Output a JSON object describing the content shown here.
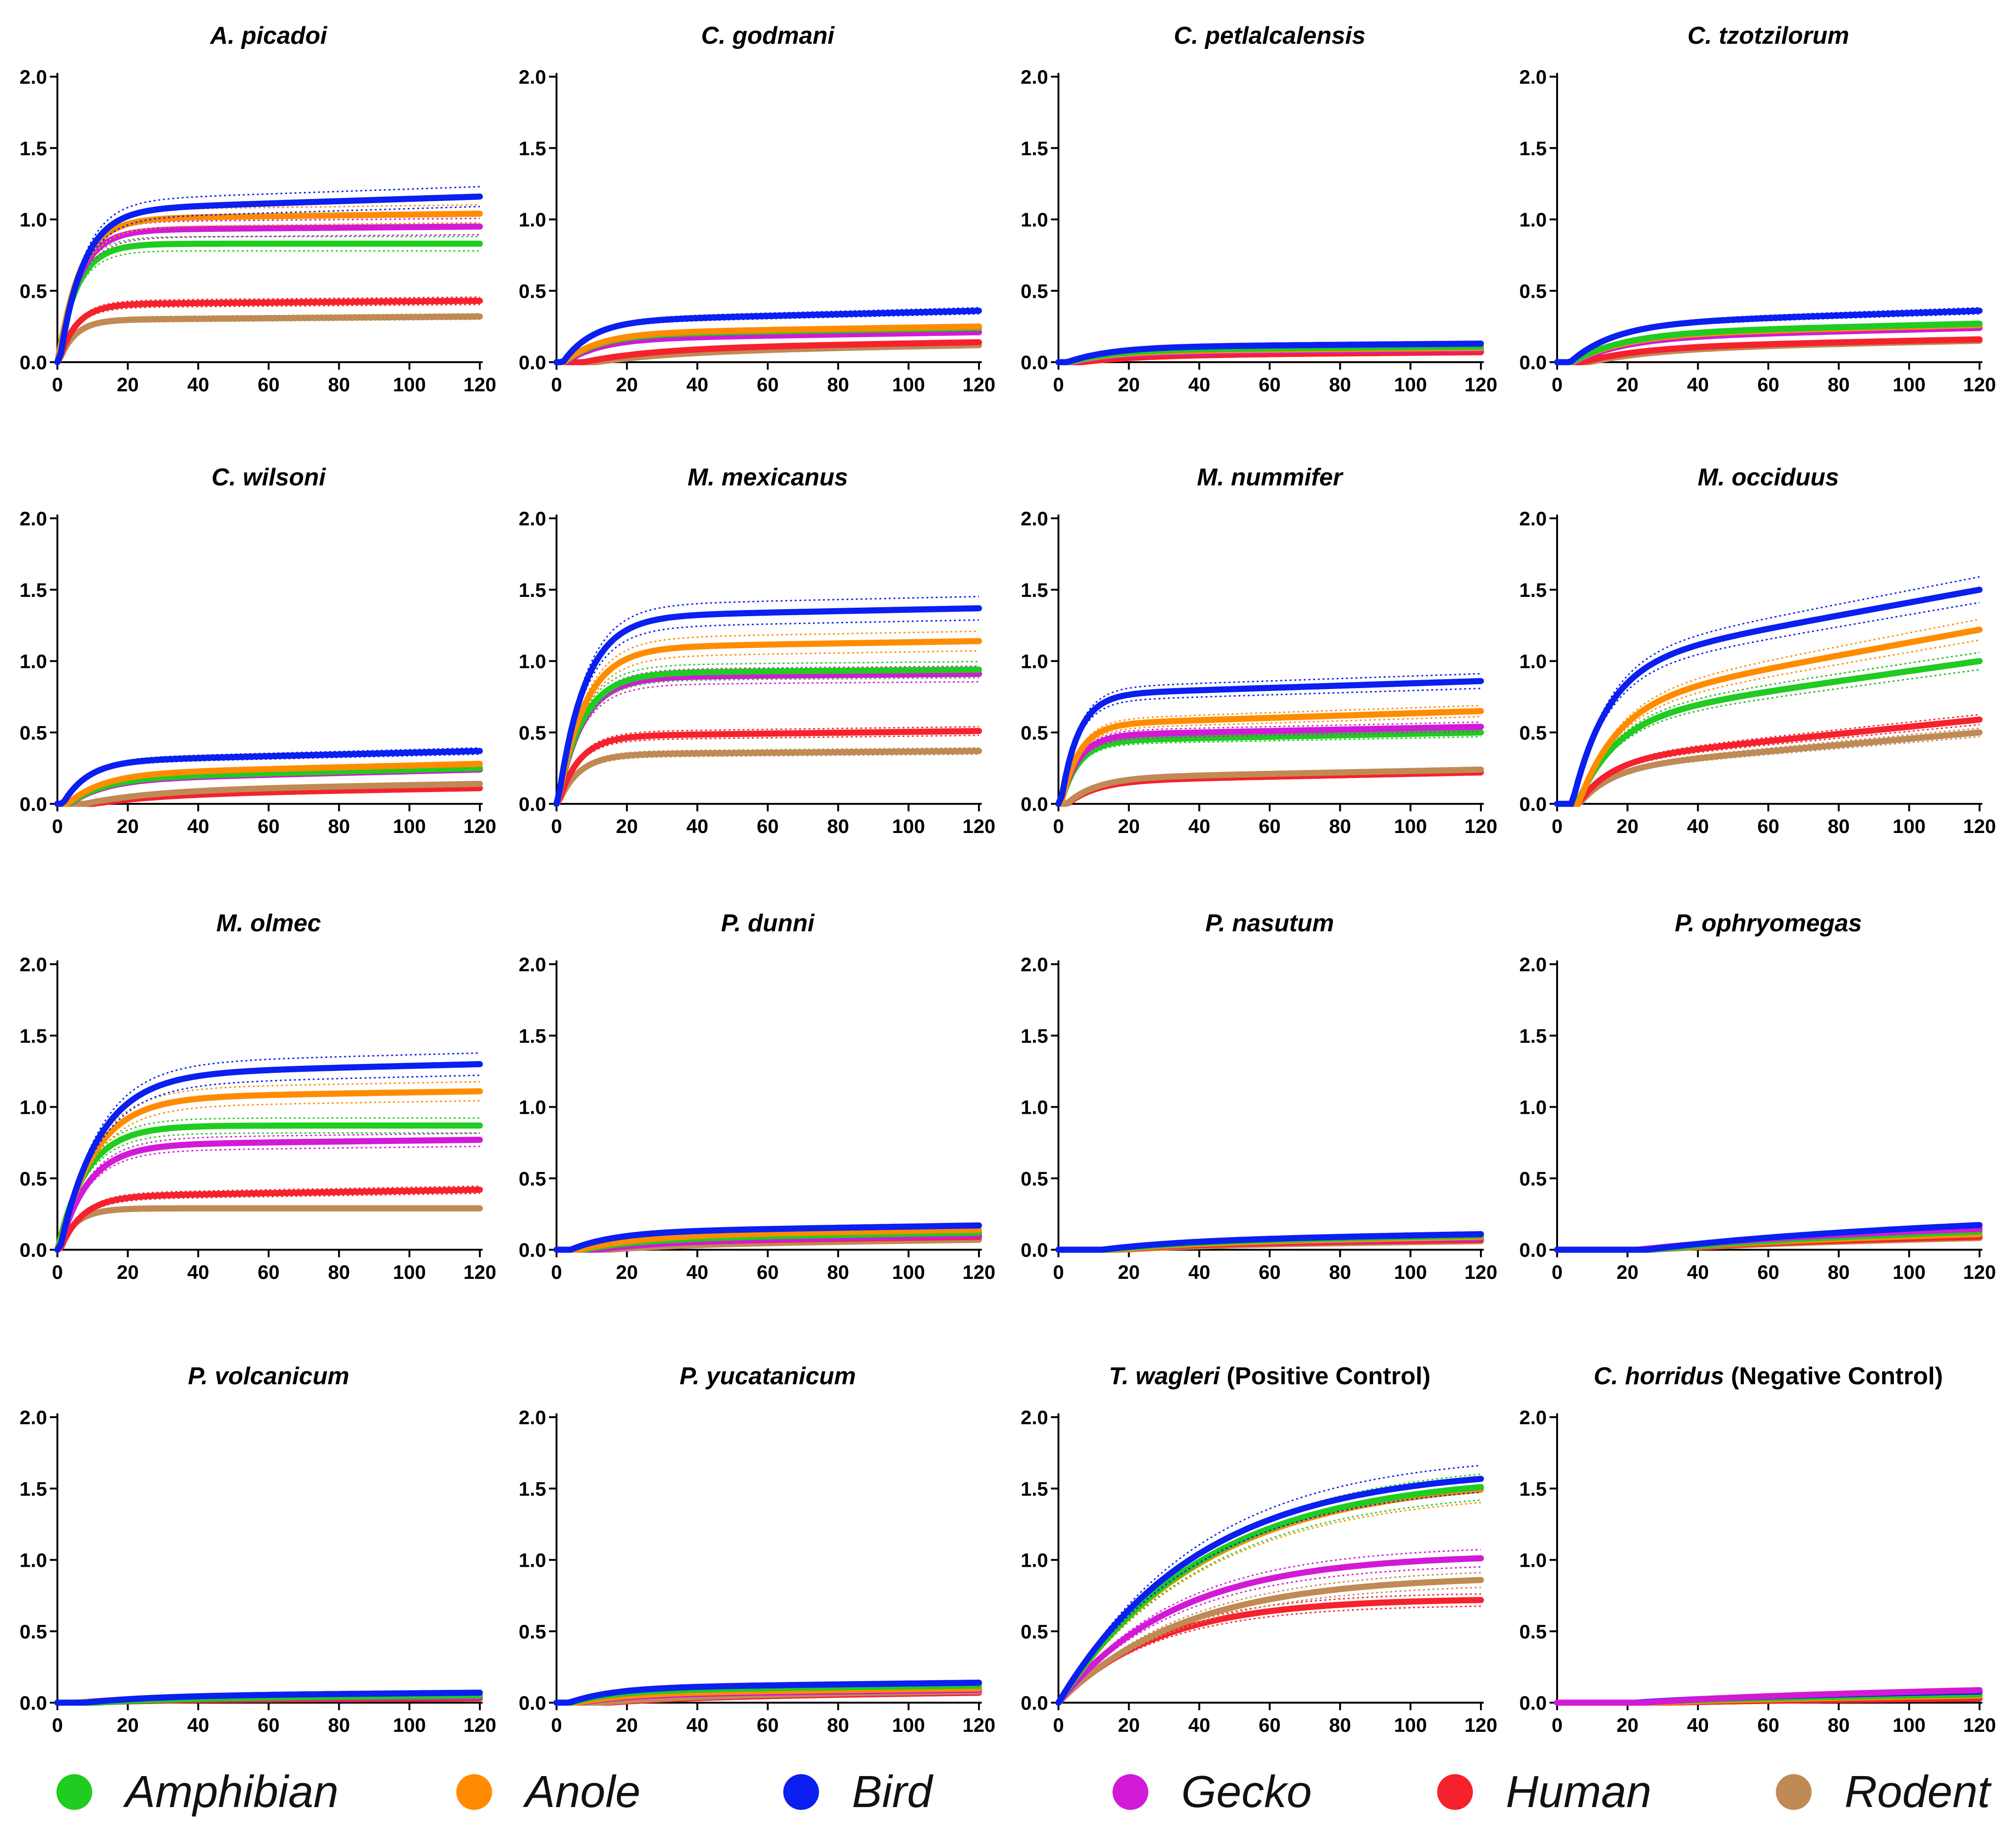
{
  "colors": {
    "Amphibian": "#1fcc1f",
    "Anole": "#ff8c00",
    "Bird": "#0a1ff0",
    "Gecko": "#d21ad6",
    "Human": "#f5222d",
    "Rodent": "#c08a55"
  },
  "legend": [
    {
      "label": "Amphibian",
      "color": "#1fcc1f"
    },
    {
      "label": "Anole",
      "color": "#ff8c00"
    },
    {
      "label": "Bird",
      "color": "#0a1ff0"
    },
    {
      "label": "Gecko",
      "color": "#d21ad6"
    },
    {
      "label": "Human",
      "color": "#f5222d"
    },
    {
      "label": "Rodent",
      "color": "#c08a55"
    }
  ],
  "chart_data": [
    {
      "type": "line",
      "title": "A. picadoi",
      "title_suffix": "",
      "xlim": [
        0,
        120
      ],
      "ylim": [
        0,
        2.0
      ],
      "xticks": [
        "0",
        "20",
        "40",
        "60",
        "80",
        "100",
        "120"
      ],
      "yticks": [
        "0.0",
        "0.5",
        "1.0",
        "1.5",
        "2.0"
      ],
      "series": [
        {
          "name": "Bird",
          "plateau": 1.16,
          "rate": 0.15,
          "slope": 0.0008
        },
        {
          "name": "Anole",
          "plateau": 1.04,
          "rate": 0.16,
          "slope": 0.0003
        },
        {
          "name": "Gecko",
          "plateau": 0.95,
          "rate": 0.17,
          "slope": 0.0002
        },
        {
          "name": "Amphibian",
          "plateau": 0.83,
          "rate": 0.18,
          "slope": 0.0
        },
        {
          "name": "Human",
          "plateau": 0.43,
          "rate": 0.2,
          "slope": 0.0002
        },
        {
          "name": "Rodent",
          "plateau": 0.32,
          "rate": 0.22,
          "slope": 0.0002
        }
      ]
    },
    {
      "type": "line",
      "title": "C. godmani",
      "title_suffix": "",
      "xlim": [
        0,
        120
      ],
      "ylim": [
        0,
        2.0
      ],
      "xticks": [
        "0",
        "20",
        "40",
        "60",
        "80",
        "100",
        "120"
      ],
      "yticks": [
        "0.0",
        "0.5",
        "1.0",
        "1.5",
        "2.0"
      ],
      "series": [
        {
          "name": "Bird",
          "plateau": 0.36,
          "rate": 0.12,
          "slope": 0.0006
        },
        {
          "name": "Anole",
          "plateau": 0.25,
          "rate": 0.1,
          "slope": 0.0004
        },
        {
          "name": "Amphibian",
          "plateau": 0.24,
          "rate": 0.1,
          "slope": 0.0004
        },
        {
          "name": "Gecko",
          "plateau": 0.21,
          "rate": 0.1,
          "slope": 0.0004
        },
        {
          "name": "Human",
          "plateau": 0.14,
          "rate": 0.05,
          "slope": 0.0004
        },
        {
          "name": "Rodent",
          "plateau": 0.12,
          "rate": 0.04,
          "slope": 0.0004
        }
      ]
    },
    {
      "type": "line",
      "title": "C. petlalcalensis",
      "title_suffix": "",
      "xlim": [
        0,
        120
      ],
      "ylim": [
        0,
        2.0
      ],
      "xticks": [
        "0",
        "20",
        "40",
        "60",
        "80",
        "100",
        "120"
      ],
      "yticks": [
        "0.0",
        "0.5",
        "1.0",
        "1.5",
        "2.0"
      ],
      "series": [
        {
          "name": "Bird",
          "plateau": 0.13,
          "rate": 0.08,
          "slope": 0.0002
        },
        {
          "name": "Amphibian",
          "plateau": 0.11,
          "rate": 0.08,
          "slope": 0.0002
        },
        {
          "name": "Anole",
          "plateau": 0.1,
          "rate": 0.08,
          "slope": 0.0002
        },
        {
          "name": "Gecko",
          "plateau": 0.09,
          "rate": 0.08,
          "slope": 0.0002
        },
        {
          "name": "Human",
          "plateau": 0.07,
          "rate": 0.06,
          "slope": 0.0002
        },
        {
          "name": "Rodent",
          "plateau": 0.07,
          "rate": 0.06,
          "slope": 0.0002
        }
      ]
    },
    {
      "type": "line",
      "title": "C. tzotzilorum",
      "title_suffix": "",
      "xlim": [
        0,
        120
      ],
      "ylim": [
        0,
        2.0
      ],
      "xticks": [
        "0",
        "20",
        "40",
        "60",
        "80",
        "100",
        "120"
      ],
      "yticks": [
        "0.0",
        "0.5",
        "1.0",
        "1.5",
        "2.0"
      ],
      "series": [
        {
          "name": "Bird",
          "plateau": 0.36,
          "rate": 0.08,
          "slope": 0.0008
        },
        {
          "name": "Amphibian",
          "plateau": 0.27,
          "rate": 0.07,
          "slope": 0.0006
        },
        {
          "name": "Anole",
          "plateau": 0.26,
          "rate": 0.07,
          "slope": 0.0006
        },
        {
          "name": "Gecko",
          "plateau": 0.24,
          "rate": 0.07,
          "slope": 0.0006
        },
        {
          "name": "Human",
          "plateau": 0.16,
          "rate": 0.06,
          "slope": 0.0005
        },
        {
          "name": "Rodent",
          "plateau": 0.15,
          "rate": 0.05,
          "slope": 0.0005
        }
      ]
    },
    {
      "type": "line",
      "title": "C. wilsoni",
      "title_suffix": "",
      "xlim": [
        0,
        120
      ],
      "ylim": [
        0,
        2.0
      ],
      "xticks": [
        "0",
        "20",
        "40",
        "60",
        "80",
        "100",
        "120"
      ],
      "yticks": [
        "0.0",
        "0.5",
        "1.0",
        "1.5",
        "2.0"
      ],
      "series": [
        {
          "name": "Bird",
          "plateau": 0.37,
          "rate": 0.14,
          "slope": 0.0006
        },
        {
          "name": "Anole",
          "plateau": 0.28,
          "rate": 0.1,
          "slope": 0.0006
        },
        {
          "name": "Amphibian",
          "plateau": 0.25,
          "rate": 0.1,
          "slope": 0.0006
        },
        {
          "name": "Gecko",
          "plateau": 0.24,
          "rate": 0.1,
          "slope": 0.0006
        },
        {
          "name": "Rodent",
          "plateau": 0.14,
          "rate": 0.05,
          "slope": 0.0004
        },
        {
          "name": "Human",
          "plateau": 0.11,
          "rate": 0.05,
          "slope": 0.0004
        }
      ]
    },
    {
      "type": "line",
      "title": "M. mexicanus",
      "title_suffix": "",
      "xlim": [
        0,
        120
      ],
      "ylim": [
        0,
        2.0
      ],
      "xticks": [
        "0",
        "20",
        "40",
        "60",
        "80",
        "100",
        "120"
      ],
      "yticks": [
        "0.0",
        "0.5",
        "1.0",
        "1.5",
        "2.0"
      ],
      "series": [
        {
          "name": "Bird",
          "plateau": 1.37,
          "rate": 0.13,
          "slope": 0.0005
        },
        {
          "name": "Anole",
          "plateau": 1.14,
          "rate": 0.13,
          "slope": 0.0004
        },
        {
          "name": "Amphibian",
          "plateau": 0.94,
          "rate": 0.14,
          "slope": 0.0002
        },
        {
          "name": "Gecko",
          "plateau": 0.91,
          "rate": 0.14,
          "slope": 0.0002
        },
        {
          "name": "Human",
          "plateau": 0.51,
          "rate": 0.17,
          "slope": 0.0003
        },
        {
          "name": "Rodent",
          "plateau": 0.37,
          "rate": 0.17,
          "slope": 0.0002
        }
      ]
    },
    {
      "type": "line",
      "title": "M. nummifer",
      "title_suffix": "",
      "xlim": [
        0,
        120
      ],
      "ylim": [
        0,
        2.0
      ],
      "xticks": [
        "0",
        "20",
        "40",
        "60",
        "80",
        "100",
        "120"
      ],
      "yticks": [
        "0.0",
        "0.5",
        "1.0",
        "1.5",
        "2.0"
      ],
      "series": [
        {
          "name": "Bird",
          "plateau": 0.86,
          "rate": 0.2,
          "slope": 0.0008
        },
        {
          "name": "Anole",
          "plateau": 0.65,
          "rate": 0.2,
          "slope": 0.0008
        },
        {
          "name": "Gecko",
          "plateau": 0.54,
          "rate": 0.2,
          "slope": 0.0005
        },
        {
          "name": "Amphibian",
          "plateau": 0.5,
          "rate": 0.2,
          "slope": 0.0005
        },
        {
          "name": "Rodent",
          "plateau": 0.24,
          "rate": 0.12,
          "slope": 0.0005
        },
        {
          "name": "Human",
          "plateau": 0.22,
          "rate": 0.12,
          "slope": 0.0005
        }
      ]
    },
    {
      "type": "line",
      "title": "M. occiduus",
      "title_suffix": "",
      "xlim": [
        0,
        120
      ],
      "ylim": [
        0,
        2.0
      ],
      "xticks": [
        "0",
        "20",
        "40",
        "60",
        "80",
        "100",
        "120"
      ],
      "yticks": [
        "0.0",
        "0.5",
        "1.0",
        "1.5",
        "2.0"
      ],
      "series": [
        {
          "name": "Bird",
          "plateau": 1.5,
          "rate": 0.1,
          "slope": 0.0045
        },
        {
          "name": "Anole",
          "plateau": 1.22,
          "rate": 0.09,
          "slope": 0.0045
        },
        {
          "name": "Amphibian",
          "plateau": 1.0,
          "rate": 0.09,
          "slope": 0.0035
        },
        {
          "name": "Gecko",
          "plateau": 1.0,
          "rate": 0.09,
          "slope": 0.0035
        },
        {
          "name": "Human",
          "plateau": 0.59,
          "rate": 0.11,
          "slope": 0.0025
        },
        {
          "name": "Rodent",
          "plateau": 0.5,
          "rate": 0.11,
          "slope": 0.0022
        }
      ]
    },
    {
      "type": "line",
      "title": "M. olmec",
      "title_suffix": "",
      "xlim": [
        0,
        120
      ],
      "ylim": [
        0,
        2.0
      ],
      "xticks": [
        "0",
        "20",
        "40",
        "60",
        "80",
        "100",
        "120"
      ],
      "yticks": [
        "0.0",
        "0.5",
        "1.0",
        "1.5",
        "2.0"
      ],
      "series": [
        {
          "name": "Bird",
          "plateau": 1.3,
          "rate": 0.09,
          "slope": 0.0006
        },
        {
          "name": "Anole",
          "plateau": 1.11,
          "rate": 0.1,
          "slope": 0.0004
        },
        {
          "name": "Amphibian",
          "plateau": 0.87,
          "rate": 0.12,
          "slope": 0.0
        },
        {
          "name": "Gecko",
          "plateau": 0.77,
          "rate": 0.12,
          "slope": 0.0003
        },
        {
          "name": "Human",
          "plateau": 0.42,
          "rate": 0.16,
          "slope": 0.0004
        },
        {
          "name": "Rodent",
          "plateau": 0.29,
          "rate": 0.2,
          "slope": 0.0
        }
      ]
    },
    {
      "type": "line",
      "title": "P. dunni",
      "title_suffix": "",
      "xlim": [
        0,
        120
      ],
      "ylim": [
        0,
        2.0
      ],
      "xticks": [
        "0",
        "20",
        "40",
        "60",
        "80",
        "100",
        "120"
      ],
      "yticks": [
        "0.0",
        "0.5",
        "1.0",
        "1.5",
        "2.0"
      ],
      "series": [
        {
          "name": "Bird",
          "plateau": 0.17,
          "rate": 0.08,
          "slope": 0.0004
        },
        {
          "name": "Anole",
          "plateau": 0.14,
          "rate": 0.06,
          "slope": 0.0004
        },
        {
          "name": "Amphibian",
          "plateau": 0.12,
          "rate": 0.06,
          "slope": 0.0004
        },
        {
          "name": "Gecko",
          "plateau": 0.1,
          "rate": 0.05,
          "slope": 0.0004
        },
        {
          "name": "Human",
          "plateau": 0.09,
          "rate": 0.05,
          "slope": 0.0003
        },
        {
          "name": "Rodent",
          "plateau": 0.07,
          "rate": 0.04,
          "slope": 0.0003
        }
      ]
    },
    {
      "type": "line",
      "title": "P. nasutum",
      "title_suffix": "",
      "xlim": [
        0,
        120
      ],
      "ylim": [
        0,
        2.0
      ],
      "xticks": [
        "0",
        "20",
        "40",
        "60",
        "80",
        "100",
        "120"
      ],
      "yticks": [
        "0.0",
        "0.5",
        "1.0",
        "1.5",
        "2.0"
      ],
      "series": [
        {
          "name": "Bird",
          "plateau": 0.11,
          "rate": 0.04,
          "slope": 0.0004
        },
        {
          "name": "Amphibian",
          "plateau": 0.1,
          "rate": 0.04,
          "slope": 0.0004
        },
        {
          "name": "Anole",
          "plateau": 0.09,
          "rate": 0.04,
          "slope": 0.0004
        },
        {
          "name": "Gecko",
          "plateau": 0.08,
          "rate": 0.04,
          "slope": 0.0003
        },
        {
          "name": "Human",
          "plateau": 0.07,
          "rate": 0.04,
          "slope": 0.0003
        },
        {
          "name": "Rodent",
          "plateau": 0.06,
          "rate": 0.04,
          "slope": 0.0003
        }
      ]
    },
    {
      "type": "line",
      "title": "P. ophryomegas",
      "title_suffix": "",
      "xlim": [
        0,
        120
      ],
      "ylim": [
        0,
        2.0
      ],
      "xticks": [
        "0",
        "20",
        "40",
        "60",
        "80",
        "100",
        "120"
      ],
      "yticks": [
        "0.0",
        "0.5",
        "1.0",
        "1.5",
        "2.0"
      ],
      "series": [
        {
          "name": "Bird",
          "plateau": 0.19,
          "rate": 0.02,
          "slope": 0.0008
        },
        {
          "name": "Gecko",
          "plateau": 0.16,
          "rate": 0.02,
          "slope": 0.0006
        },
        {
          "name": "Amphibian",
          "plateau": 0.14,
          "rate": 0.02,
          "slope": 0.0006
        },
        {
          "name": "Anole",
          "plateau": 0.12,
          "rate": 0.02,
          "slope": 0.0005
        },
        {
          "name": "Human",
          "plateau": 0.1,
          "rate": 0.02,
          "slope": 0.0004
        },
        {
          "name": "Rodent",
          "plateau": 0.09,
          "rate": 0.02,
          "slope": 0.0004
        }
      ]
    },
    {
      "type": "line",
      "title": "P. volcanicum",
      "title_suffix": "",
      "xlim": [
        0,
        120
      ],
      "ylim": [
        0,
        2.0
      ],
      "xticks": [
        "0",
        "20",
        "40",
        "60",
        "80",
        "100",
        "120"
      ],
      "yticks": [
        "0.0",
        "0.5",
        "1.0",
        "1.5",
        "2.0"
      ],
      "series": [
        {
          "name": "Bird",
          "plateau": 0.07,
          "rate": 0.05,
          "slope": 0.0002
        },
        {
          "name": "Amphibian",
          "plateau": 0.05,
          "rate": 0.05,
          "slope": 0.0002
        },
        {
          "name": "Anole",
          "plateau": 0.05,
          "rate": 0.05,
          "slope": 0.0001
        },
        {
          "name": "Gecko",
          "plateau": 0.04,
          "rate": 0.05,
          "slope": 0.0001
        },
        {
          "name": "Human",
          "plateau": 0.03,
          "rate": 0.05,
          "slope": 0.0001
        },
        {
          "name": "Rodent",
          "plateau": 0.03,
          "rate": 0.05,
          "slope": 0.0001
        }
      ]
    },
    {
      "type": "line",
      "title": "P. yucatanicum",
      "title_suffix": "",
      "xlim": [
        0,
        120
      ],
      "ylim": [
        0,
        2.0
      ],
      "xticks": [
        "0",
        "20",
        "40",
        "60",
        "80",
        "100",
        "120"
      ],
      "yticks": [
        "0.0",
        "0.5",
        "1.0",
        "1.5",
        "2.0"
      ],
      "series": [
        {
          "name": "Bird",
          "plateau": 0.14,
          "rate": 0.08,
          "slope": 0.0003
        },
        {
          "name": "Amphibian",
          "plateau": 0.12,
          "rate": 0.08,
          "slope": 0.0003
        },
        {
          "name": "Anole",
          "plateau": 0.1,
          "rate": 0.07,
          "slope": 0.0003
        },
        {
          "name": "Gecko",
          "plateau": 0.09,
          "rate": 0.07,
          "slope": 0.0003
        },
        {
          "name": "Rodent",
          "plateau": 0.08,
          "rate": 0.04,
          "slope": 0.0003
        },
        {
          "name": "Human",
          "plateau": 0.07,
          "rate": 0.04,
          "slope": 0.0003
        }
      ]
    },
    {
      "type": "line",
      "title": "T. wagleri",
      "title_suffix": " (Positive Control)",
      "xlim": [
        0,
        120
      ],
      "ylim": [
        0,
        2.0
      ],
      "xticks": [
        "0",
        "20",
        "40",
        "60",
        "80",
        "100",
        "120"
      ],
      "yticks": [
        "0.0",
        "0.5",
        "1.0",
        "1.5",
        "2.0"
      ],
      "series": [
        {
          "name": "Bird",
          "plateau": 1.65,
          "rate": 0.025,
          "slope": 0.0
        },
        {
          "name": "Amphibian",
          "plateau": 1.6,
          "rate": 0.024,
          "slope": 0.0
        },
        {
          "name": "Anole",
          "plateau": 1.58,
          "rate": 0.024,
          "slope": 0.0
        },
        {
          "name": "Gecko",
          "plateau": 1.04,
          "rate": 0.03,
          "slope": 0.0
        },
        {
          "name": "Rodent",
          "plateau": 0.89,
          "rate": 0.028,
          "slope": 0.0
        },
        {
          "name": "Human",
          "plateau": 0.73,
          "rate": 0.035,
          "slope": 0.0
        }
      ]
    },
    {
      "type": "line",
      "title": "C. horridus",
      "title_suffix": " (Negative Control)",
      "xlim": [
        0,
        120
      ],
      "ylim": [
        0,
        2.0
      ],
      "xticks": [
        "0",
        "20",
        "40",
        "60",
        "80",
        "100",
        "120"
      ],
      "yticks": [
        "0.0",
        "0.5",
        "1.0",
        "1.5",
        "2.0"
      ],
      "series": [
        {
          "name": "Gecko",
          "plateau": 0.09,
          "rate": 0.03,
          "slope": 0.0005
        },
        {
          "name": "Bird",
          "plateau": 0.08,
          "rate": 0.03,
          "slope": 0.0004
        },
        {
          "name": "Amphibian",
          "plateau": 0.06,
          "rate": 0.03,
          "slope": 0.0003
        },
        {
          "name": "Anole",
          "plateau": 0.05,
          "rate": 0.03,
          "slope": 0.0003
        },
        {
          "name": "Human",
          "plateau": 0.03,
          "rate": 0.03,
          "slope": 0.0002
        },
        {
          "name": "Rodent",
          "plateau": 0.03,
          "rate": 0.03,
          "slope": 0.0002
        }
      ]
    }
  ]
}
